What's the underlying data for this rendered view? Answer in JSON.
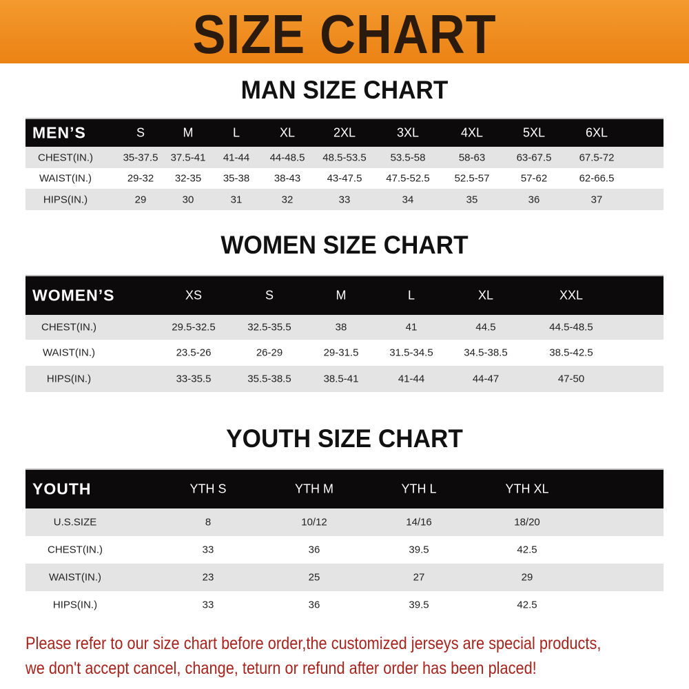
{
  "title": "SIZE CHART",
  "colors": {
    "banner": "#ec8214",
    "header_row": "#0c0a0a",
    "stripe": "#e4e4e4",
    "notice": "#a8231c"
  },
  "men": {
    "title": "MAN SIZE CHART",
    "header_label": "MEN’S",
    "sizes": [
      "S",
      "M",
      "L",
      "XL",
      "2XL",
      "3XL",
      "4XL",
      "5XL",
      "6XL"
    ],
    "rows": [
      {
        "label": "CHEST(IN.)",
        "values": [
          "35-37.5",
          "37.5-41",
          "41-44",
          "44-48.5",
          "48.5-53.5",
          "53.5-58",
          "58-63",
          "63-67.5",
          "67.5-72"
        ]
      },
      {
        "label": "WAIST(IN.)",
        "values": [
          "29-32",
          "32-35",
          "35-38",
          "38-43",
          "43-47.5",
          "47.5-52.5",
          "52.5-57",
          "57-62",
          "62-66.5"
        ]
      },
      {
        "label": "HIPS(IN.)",
        "values": [
          "29",
          "30",
          "31",
          "32",
          "33",
          "34",
          "35",
          "36",
          "37"
        ]
      }
    ]
  },
  "women": {
    "title": "WOMEN SIZE CHART",
    "header_label": "WOMEN’S",
    "sizes": [
      "XS",
      "S",
      "M",
      "L",
      "XL",
      "XXL"
    ],
    "rows": [
      {
        "label": "CHEST(IN.)",
        "values": [
          "29.5-32.5",
          "32.5-35.5",
          "38",
          "41",
          "44.5",
          "44.5-48.5"
        ]
      },
      {
        "label": "WAIST(IN.)",
        "values": [
          "23.5-26",
          "26-29",
          "29-31.5",
          "31.5-34.5",
          "34.5-38.5",
          "38.5-42.5"
        ]
      },
      {
        "label": "HIPS(IN.)",
        "values": [
          "33-35.5",
          "35.5-38.5",
          "38.5-41",
          "41-44",
          "44-47",
          "47-50"
        ]
      }
    ]
  },
  "youth": {
    "title": "YOUTH SIZE CHART",
    "header_label": "YOUTH",
    "sizes": [
      "YTH S",
      "YTH M",
      "YTH L",
      "YTH XL"
    ],
    "rows": [
      {
        "label": "U.S.SIZE",
        "values": [
          "8",
          "10/12",
          "14/16",
          "18/20"
        ]
      },
      {
        "label": "CHEST(IN.)",
        "values": [
          "33",
          "36",
          "39.5",
          "42.5"
        ]
      },
      {
        "label": "WAIST(IN.)",
        "values": [
          "23",
          "25",
          "27",
          "29"
        ]
      },
      {
        "label": "HIPS(IN.)",
        "values": [
          "33",
          "36",
          "39.5",
          "42.5"
        ]
      }
    ]
  },
  "notice": {
    "line1": "Please refer to our size chart before order,the customized jerseys are special products,",
    "line2": "we don't accept cancel, change, teturn or refund after order has been placed!"
  }
}
